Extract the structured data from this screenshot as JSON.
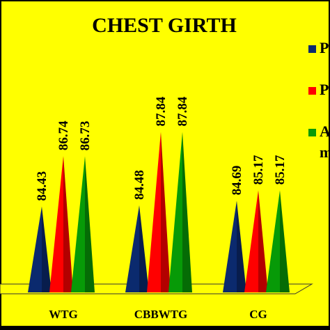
{
  "chart_data": {
    "type": "bar",
    "shape": "pyramid",
    "title": "CHEST GIRTH",
    "categories": [
      "WTG",
      "CBBWTG",
      "CG"
    ],
    "series": [
      {
        "name": "P",
        "color": "#0b2a6e",
        "values": [
          84.43,
          84.48,
          84.69
        ]
      },
      {
        "name": "P",
        "color": "#ff0000",
        "values": [
          86.74,
          87.84,
          85.17
        ]
      },
      {
        "name": "A",
        "name_suffix": "m",
        "color": "#079a07",
        "values": [
          86.73,
          87.84,
          85.17
        ]
      }
    ],
    "value_labels": [
      [
        "84.43",
        "86.74",
        "86.73"
      ],
      [
        "84.48",
        "87.84",
        "87.84"
      ],
      [
        "84.69",
        "85.17",
        "85.17"
      ]
    ],
    "background": "#ffff00",
    "legend": "right",
    "grid": false
  }
}
